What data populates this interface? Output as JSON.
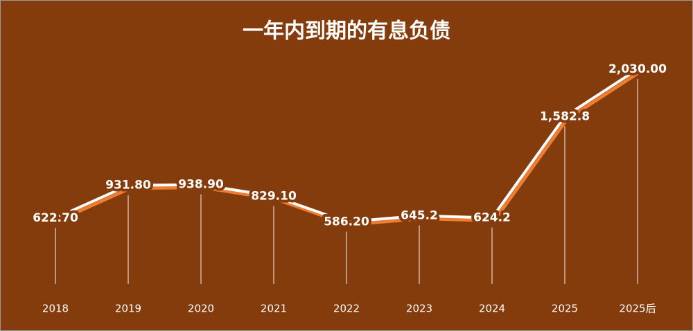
{
  "chart_data": {
    "type": "line",
    "title": "一年内到期的有息负债",
    "categories": [
      "2018",
      "2019",
      "2020",
      "2021",
      "2022",
      "2023",
      "2024",
      "2025",
      "2025后"
    ],
    "values": [
      622.7,
      931.8,
      938.9,
      829.1,
      586.2,
      645.2,
      624.2,
      1582.8,
      2030
    ],
    "value_labels": [
      "622.70",
      "931.80",
      "938.90",
      "829.10",
      "586.20",
      "645.2",
      "624.2",
      "1,582.8",
      "2,030.00"
    ],
    "color": "#ffffff",
    "background": "#843c0c"
  }
}
